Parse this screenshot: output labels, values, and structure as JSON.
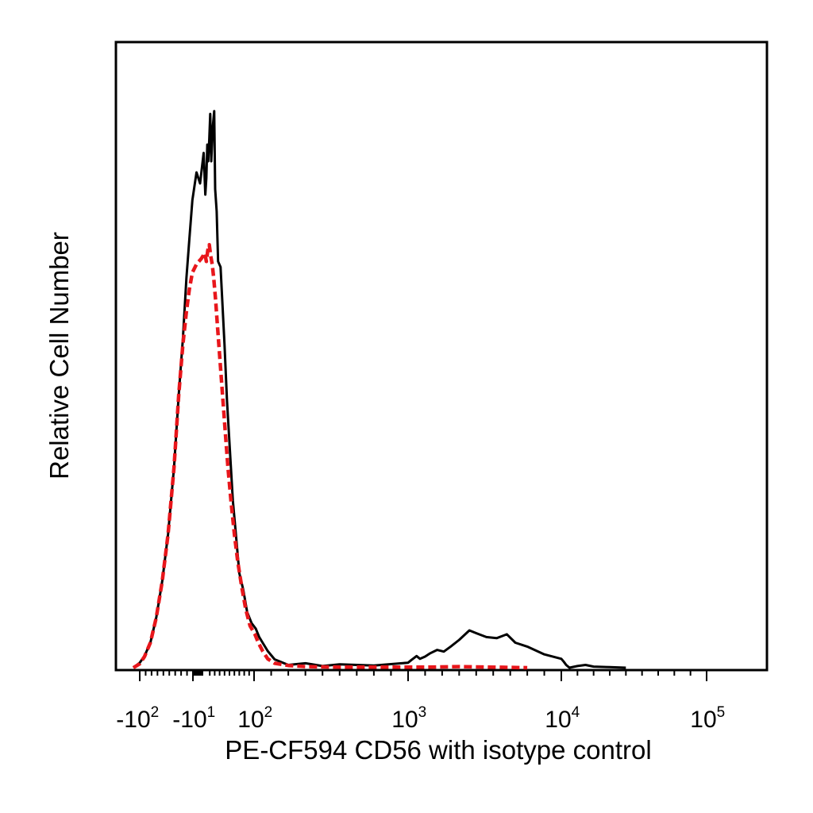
{
  "chart_data": {
    "type": "line",
    "title": "",
    "xlabel": "PE-CF594 CD56 with isotype control",
    "ylabel": "Relative Cell Number",
    "x_scale": "biexponential",
    "x_ticks": [
      {
        "value": -100,
        "base": "-10",
        "exp": "2"
      },
      {
        "value": -10,
        "base": "-10",
        "exp": "1"
      },
      {
        "value": 100,
        "base": "10",
        "exp": "2"
      },
      {
        "value": 1000,
        "base": "10",
        "exp": "3"
      },
      {
        "value": 10000,
        "base": "10",
        "exp": "4"
      },
      {
        "value": 100000,
        "base": "10",
        "exp": "5"
      }
    ],
    "y_ticks_shown": false,
    "grid": false,
    "legend": "none",
    "series": [
      {
        "color": "#000000",
        "style": "solid",
        "points": [
          [
            -115,
            0.0
          ],
          [
            -100,
            0.9
          ],
          [
            -92,
            2.1
          ],
          [
            -82,
            4.5
          ],
          [
            -72,
            9.0
          ],
          [
            -62,
            15.5
          ],
          [
            -52,
            24.0
          ],
          [
            -42,
            36.0
          ],
          [
            -34,
            49.0
          ],
          [
            -27,
            59.0
          ],
          [
            -21,
            70.0
          ],
          [
            -16,
            77.0
          ],
          [
            -11,
            84.0
          ],
          [
            -7,
            89.0
          ],
          [
            -4,
            87.0
          ],
          [
            -1,
            92.5
          ],
          [
            1,
            85.0
          ],
          [
            3,
            88.0
          ],
          [
            5,
            94.0
          ],
          [
            7,
            91.0
          ],
          [
            9,
            95.0
          ],
          [
            11,
            99.5
          ],
          [
            13,
            91.0
          ],
          [
            16,
            97.0
          ],
          [
            19,
            100.0
          ],
          [
            21,
            86.0
          ],
          [
            24,
            82.0
          ],
          [
            27,
            73.0
          ],
          [
            32,
            72.0
          ],
          [
            36,
            65.0
          ],
          [
            40,
            58.0
          ],
          [
            45,
            48.0
          ],
          [
            51,
            39.0
          ],
          [
            57,
            30.0
          ],
          [
            63,
            24.0
          ],
          [
            70,
            17.0
          ],
          [
            78,
            14.0
          ],
          [
            86,
            10.0
          ],
          [
            95,
            8.0
          ],
          [
            110,
            7.0
          ],
          [
            130,
            5.5
          ],
          [
            150,
            4.5
          ],
          [
            180,
            3.0
          ],
          [
            220,
            1.5
          ],
          [
            300,
            0.5
          ],
          [
            400,
            0.8
          ],
          [
            500,
            0.3
          ],
          [
            600,
            0.6
          ],
          [
            800,
            0.4
          ],
          [
            1000,
            0.9
          ],
          [
            1200,
            1.4
          ],
          [
            1500,
            2.1
          ],
          [
            1700,
            1.6
          ],
          [
            2000,
            2.0
          ],
          [
            2300,
            2.6
          ],
          [
            2700,
            3.2
          ],
          [
            3100,
            2.9
          ],
          [
            3500,
            3.8
          ],
          [
            4000,
            5.0
          ],
          [
            4600,
            6.7
          ],
          [
            5000,
            6.2
          ],
          [
            5600,
            5.5
          ],
          [
            6200,
            5.3
          ],
          [
            6800,
            6.0
          ],
          [
            7300,
            4.5
          ],
          [
            8000,
            3.8
          ],
          [
            9000,
            2.4
          ],
          [
            10000,
            1.6
          ],
          [
            11500,
            1.1
          ],
          [
            13000,
            0.5
          ],
          [
            15000,
            0.0
          ],
          [
            20000,
            0.3
          ],
          [
            25000,
            0.5
          ],
          [
            30000,
            0.2
          ],
          [
            40000,
            0.1
          ],
          [
            50000,
            0.0
          ]
        ]
      },
      {
        "color": "#e8161b",
        "style": "dashed",
        "points": [
          [
            -115,
            0.0
          ],
          [
            -100,
            0.7
          ],
          [
            -92,
            2.0
          ],
          [
            -82,
            4.5
          ],
          [
            -72,
            9.0
          ],
          [
            -62,
            15.5
          ],
          [
            -52,
            24.0
          ],
          [
            -42,
            36.0
          ],
          [
            -34,
            49.0
          ],
          [
            -27,
            58.0
          ],
          [
            -21,
            64.0
          ],
          [
            -16,
            68.0
          ],
          [
            -11,
            71.0
          ],
          [
            -7,
            72.5
          ],
          [
            -3,
            73.5
          ],
          [
            0,
            74.5
          ],
          [
            3,
            73.0
          ],
          [
            6,
            75.0
          ],
          [
            9,
            76.0
          ],
          [
            12,
            74.0
          ],
          [
            15,
            72.5
          ],
          [
            18,
            70.0
          ],
          [
            22,
            66.0
          ],
          [
            26,
            61.0
          ],
          [
            31,
            55.0
          ],
          [
            36,
            49.0
          ],
          [
            41,
            43.0
          ],
          [
            47,
            36.0
          ],
          [
            53,
            30.0
          ],
          [
            60,
            24.0
          ],
          [
            67,
            19.0
          ],
          [
            75,
            14.5
          ],
          [
            83,
            10.5
          ],
          [
            92,
            7.5
          ],
          [
            105,
            6.0
          ],
          [
            125,
            4.5
          ],
          [
            150,
            3.0
          ],
          [
            180,
            1.6
          ],
          [
            220,
            0.8
          ],
          [
            300,
            0.4
          ],
          [
            400,
            0.2
          ],
          [
            600,
            0.1
          ],
          [
            1000,
            0.1
          ],
          [
            2000,
            0.1
          ],
          [
            4000,
            0.2
          ],
          [
            8000,
            0.0
          ]
        ]
      }
    ]
  }
}
